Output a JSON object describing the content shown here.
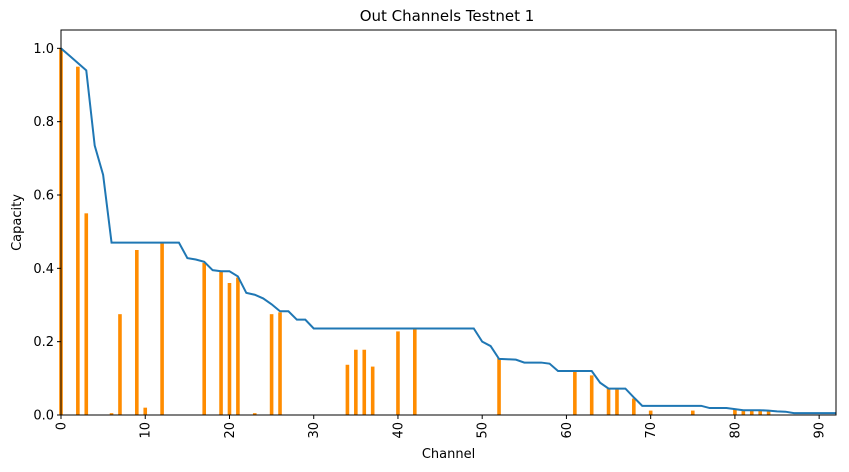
{
  "chart_data": {
    "type": "bar",
    "title": "Out Channels Testnet 1",
    "xlabel": "Channel",
    "ylabel": "Capacity",
    "xlim": [
      0,
      92
    ],
    "ylim": [
      0,
      1.05
    ],
    "x_ticks": [
      0,
      10,
      20,
      30,
      40,
      50,
      60,
      70,
      80,
      90
    ],
    "y_ticks": [
      0.0,
      0.2,
      0.4,
      0.6,
      0.8,
      1.0
    ],
    "grid": false,
    "colors": {
      "bars": "#ff8c00",
      "line": "#1f77b4"
    },
    "series": [
      {
        "type": "bar",
        "x": [
          0,
          2,
          3,
          6,
          7,
          9,
          10,
          12,
          17,
          19,
          20,
          21,
          23,
          25,
          26,
          34,
          35,
          36,
          37,
          40,
          42,
          52,
          61,
          63,
          65,
          66,
          68,
          70,
          75,
          80,
          81,
          82,
          83,
          84
        ],
        "values": [
          1.0,
          0.95,
          0.55,
          0.005,
          0.275,
          0.45,
          0.02,
          0.47,
          0.415,
          0.39,
          0.36,
          0.375,
          0.005,
          0.275,
          0.28,
          0.137,
          0.178,
          0.178,
          0.132,
          0.228,
          0.235,
          0.155,
          0.118,
          0.108,
          0.072,
          0.07,
          0.045,
          0.012,
          0.012,
          0.016,
          0.012,
          0.012,
          0.012,
          0.012
        ]
      },
      {
        "type": "line",
        "x": [
          0,
          1,
          2,
          3,
          4,
          5,
          6,
          7,
          8,
          9,
          10,
          11,
          12,
          13,
          14,
          15,
          16,
          17,
          18,
          19,
          20,
          21,
          22,
          23,
          24,
          25,
          26,
          27,
          28,
          29,
          30,
          31,
          32,
          33,
          34,
          35,
          36,
          37,
          38,
          39,
          40,
          41,
          42,
          43,
          44,
          45,
          46,
          47,
          48,
          49,
          50,
          51,
          52,
          53,
          54,
          55,
          56,
          57,
          58,
          59,
          60,
          61,
          62,
          63,
          64,
          65,
          66,
          67,
          68,
          69,
          70,
          71,
          72,
          73,
          74,
          75,
          76,
          77,
          78,
          79,
          80,
          81,
          82,
          83,
          84,
          85,
          86,
          87,
          88,
          89,
          90,
          91,
          92
        ],
        "values": [
          1.0,
          0.98,
          0.96,
          0.94,
          0.735,
          0.655,
          0.47,
          0.47,
          0.47,
          0.47,
          0.47,
          0.47,
          0.47,
          0.47,
          0.47,
          0.428,
          0.424,
          0.418,
          0.395,
          0.392,
          0.392,
          0.378,
          0.333,
          0.328,
          0.318,
          0.302,
          0.283,
          0.283,
          0.26,
          0.26,
          0.236,
          0.236,
          0.236,
          0.236,
          0.236,
          0.236,
          0.236,
          0.236,
          0.236,
          0.236,
          0.236,
          0.236,
          0.236,
          0.236,
          0.236,
          0.236,
          0.236,
          0.236,
          0.236,
          0.236,
          0.2,
          0.188,
          0.153,
          0.152,
          0.151,
          0.143,
          0.143,
          0.143,
          0.14,
          0.12,
          0.12,
          0.12,
          0.12,
          0.12,
          0.088,
          0.072,
          0.072,
          0.072,
          0.048,
          0.025,
          0.025,
          0.025,
          0.025,
          0.025,
          0.025,
          0.025,
          0.025,
          0.019,
          0.019,
          0.019,
          0.016,
          0.013,
          0.013,
          0.013,
          0.012,
          0.01,
          0.009,
          0.005,
          0.005,
          0.005,
          0.005,
          0.005,
          0.005
        ]
      }
    ]
  }
}
